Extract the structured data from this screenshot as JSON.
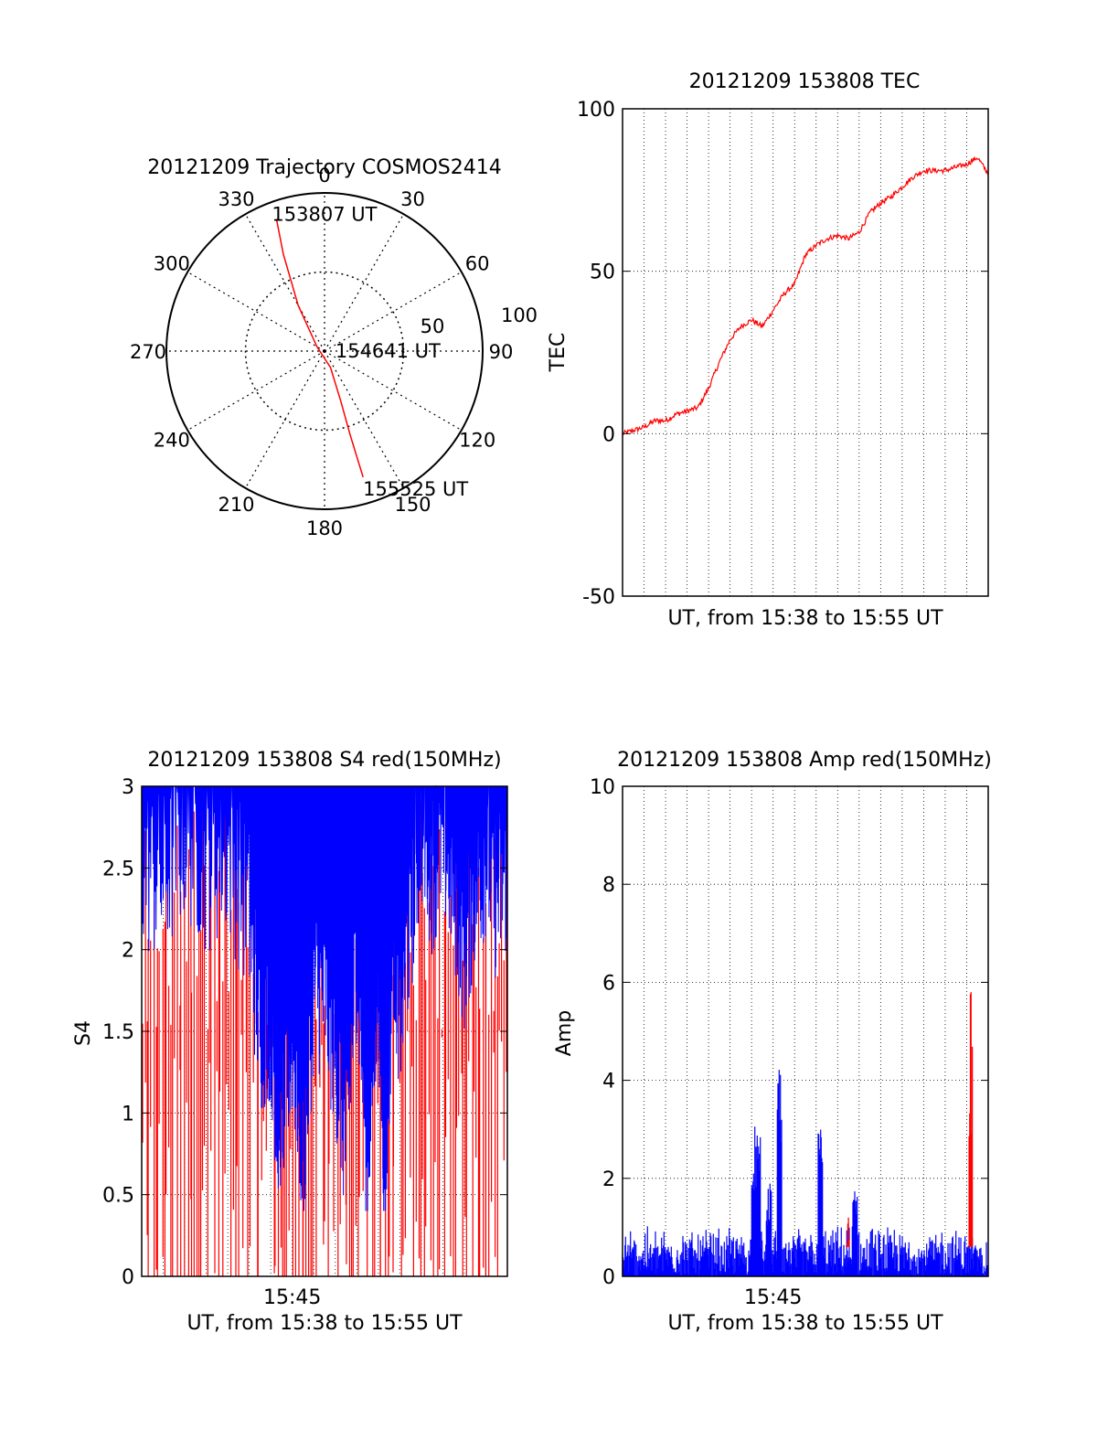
{
  "chart_data": [
    {
      "type": "polar",
      "title": "20121209 Trajectory COSMOS2414",
      "angle_labels": [
        "0",
        "30",
        "60",
        "90",
        "120",
        "150",
        "180",
        "210",
        "240",
        "270",
        "300",
        "330"
      ],
      "radial_labels": [
        "50",
        "100"
      ],
      "elevation_range": [
        0,
        90
      ],
      "grid": true,
      "series": [
        {
          "points": [
            {
              "az": 340,
              "el": 10
            },
            {
              "az": 337,
              "el": 30
            },
            {
              "az": 330,
              "el": 60
            },
            {
              "az": 300,
              "el": 85
            },
            {
              "az": 160,
              "el": 80
            },
            {
              "az": 162,
              "el": 60
            },
            {
              "az": 163,
              "el": 40
            },
            {
              "az": 163,
              "el": 15
            }
          ],
          "color": "#ff0000"
        }
      ],
      "annotations": [
        {
          "text": "153807 UT",
          "az": 340,
          "el": 10
        },
        {
          "text": "154641 UT",
          "az": 90,
          "el": 88
        },
        {
          "text": "155525 UT",
          "az": 163,
          "el": 15
        }
      ]
    },
    {
      "type": "line",
      "title": "20121209 153808 TEC",
      "xlabel": "UT, from 15:38 to 15:55 UT",
      "ylabel": "TEC",
      "xlim": [
        0,
        17
      ],
      "ylim": [
        -50,
        100
      ],
      "yticks": [
        "100",
        "50",
        "0",
        "-50"
      ],
      "grid": true,
      "series": [
        {
          "color": "#ff0000",
          "x": [
            0,
            0.5,
            1.0,
            1.5,
            2.0,
            2.5,
            3.0,
            3.5,
            4.0,
            4.5,
            5.0,
            5.5,
            6.0,
            6.5,
            7.0,
            7.5,
            8.0,
            8.5,
            9.0,
            9.5,
            10.0,
            10.5,
            11.0,
            11.5,
            12.0,
            12.5,
            13.0,
            13.5,
            14.0,
            14.5,
            15.0,
            15.5,
            16.0,
            16.5,
            17.0
          ],
          "y": [
            0,
            1,
            2,
            4,
            4,
            6,
            7,
            8,
            14,
            22,
            29,
            33,
            35,
            33,
            38,
            43,
            46,
            55,
            58,
            60,
            61,
            60,
            62,
            68,
            71,
            73,
            76,
            79,
            81,
            81,
            81,
            82,
            83,
            85,
            80
          ]
        }
      ]
    },
    {
      "type": "line",
      "title": "20121209 153808 S4 red(150MHz)",
      "xlabel": "UT, from 15:38 to 15:55 UT",
      "ylabel": "S4",
      "xlim": [
        0,
        17
      ],
      "ylim": [
        0,
        3
      ],
      "xticks": [
        {
          "value": 7,
          "label": "15:45"
        }
      ],
      "yticks": [
        "3",
        "2.5",
        "2",
        "1.5",
        "1",
        "0.5",
        "0"
      ],
      "grid": true,
      "series": [
        {
          "color": "#ff0000",
          "style": "dense spikes between 0 and 3"
        },
        {
          "color": "#0000ff",
          "x": [
            0,
            1,
            2,
            3,
            4,
            5,
            5.5,
            6,
            6.3,
            6.6,
            7,
            7.5,
            8,
            8.5,
            9,
            9.5,
            10,
            10.5,
            11,
            11.3,
            11.7,
            12,
            12.5,
            13,
            13.5,
            14,
            14.5,
            15,
            15.5,
            16,
            16.5,
            17
          ],
          "y": [
            2.3,
            2.2,
            2.5,
            2.3,
            2.4,
            2.0,
            1.3,
            1.4,
            0.8,
            0.9,
            1.3,
            0.55,
            1.6,
            1.5,
            1.2,
            0.6,
            1.8,
            0.5,
            1.7,
            0.4,
            1.9,
            1.4,
            2.0,
            2.6,
            2.3,
            2.5,
            2.2,
            1.8,
            2.2,
            2.4,
            2.1,
            2.3
          ]
        }
      ]
    },
    {
      "type": "line",
      "title": "20121209 153808 Amp red(150MHz)",
      "xlabel": "UT, from 15:38 to 15:55 UT",
      "ylabel": "Amp",
      "xlim": [
        0,
        17
      ],
      "ylim": [
        0,
        10
      ],
      "xticks": [
        {
          "value": 7,
          "label": "15:45"
        }
      ],
      "yticks": [
        "10",
        "8",
        "6",
        "4",
        "2",
        "0"
      ],
      "grid": true,
      "series": [
        {
          "color": "#0000ff",
          "baseline": 0.6,
          "spikes": [
            {
              "x": 6.1,
              "y": 3.1
            },
            {
              "x": 6.3,
              "y": 2.9
            },
            {
              "x": 6.8,
              "y": 1.9
            },
            {
              "x": 7.3,
              "y": 4.4
            },
            {
              "x": 9.2,
              "y": 3.1
            },
            {
              "x": 10.8,
              "y": 1.8
            }
          ]
        },
        {
          "color": "#ff0000",
          "spikes": [
            {
              "x": 10.5,
              "y": 1.2
            },
            {
              "x": 16.2,
              "y": 5.8
            }
          ]
        }
      ]
    }
  ]
}
